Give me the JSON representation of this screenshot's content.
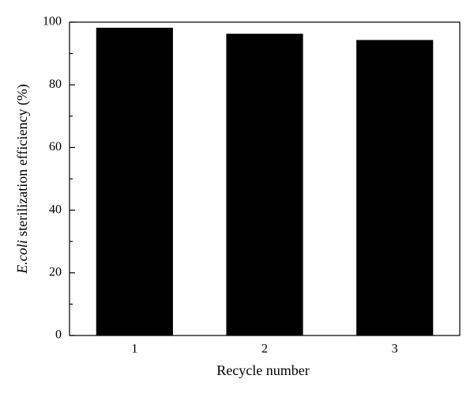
{
  "chart_data": {
    "type": "bar",
    "y_label": [
      {
        "text": "E.coli",
        "italic": true
      },
      {
        "text": " sterilization efficiency (%)",
        "italic": false
      }
    ],
    "x_label": "Recycle number",
    "categories": [
      "1",
      "2",
      "3"
    ],
    "values": [
      98.2,
      96.3,
      94.3
    ],
    "color": "#000000",
    "ylim": [
      0,
      100
    ],
    "yticks": [
      0,
      20,
      40,
      60,
      80,
      100
    ]
  }
}
